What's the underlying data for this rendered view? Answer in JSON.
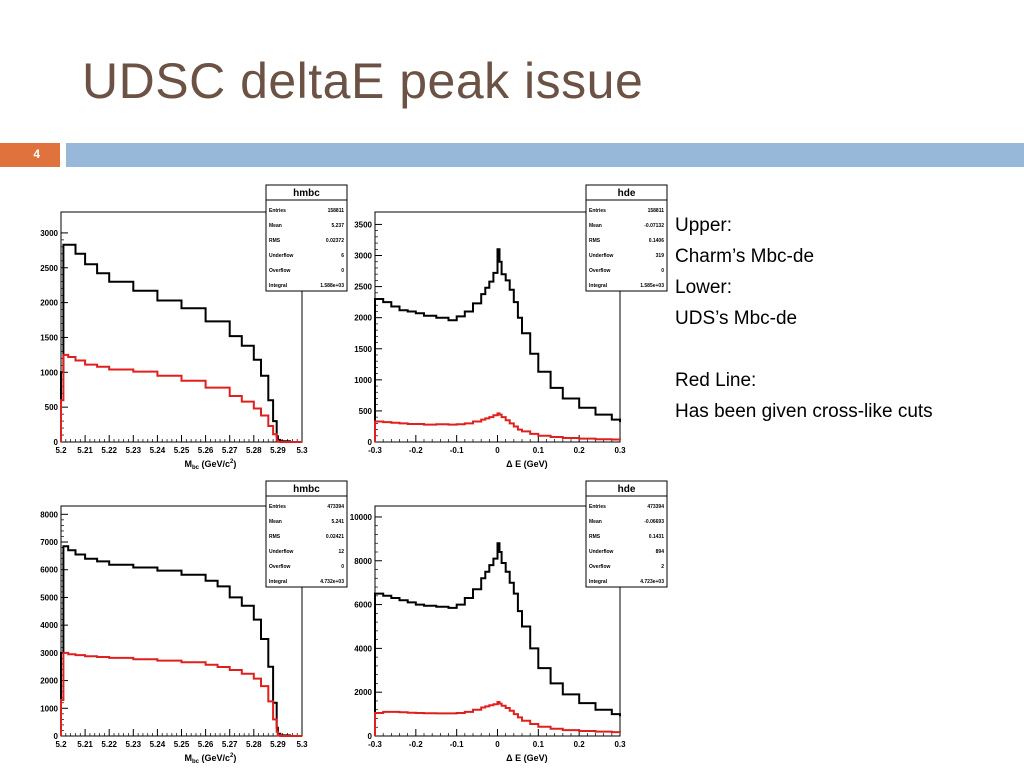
{
  "slide": {
    "title": "UDSC deltaE peak issue",
    "page_number": "4",
    "notes": [
      "Upper:",
      "Charm’s Mbc-de",
      "Lower:",
      "UDS’s Mbc-de",
      "",
      "Red Line:",
      "Has been given cross-like cuts"
    ]
  },
  "colors": {
    "title": "#6b5244",
    "bar": "#97b8d8",
    "number_box": "#e0733d",
    "series_all": "#000000",
    "series_cut": "#e0201e"
  },
  "chart_data": [
    {
      "type": "line",
      "step": true,
      "stats": {
        "name": "hmbc",
        "rows": [
          [
            "Entries",
            "158811"
          ],
          [
            "Mean",
            "5.237"
          ],
          [
            "RMS",
            "0.02372"
          ],
          [
            "Underflow",
            "6"
          ],
          [
            "Overflow",
            "0"
          ],
          [
            "Integral",
            "1.588e+03"
          ]
        ]
      },
      "xlabel": "Mbc (GeV/c2)",
      "xlabel_main": "M",
      "xlabel_sub": "bc",
      "xlabel_rest": " (GeV/c",
      "xlabel_sup": "2",
      "xlabel_end": ")",
      "xlim": [
        5.2,
        5.3
      ],
      "ylim": [
        0,
        3300
      ],
      "xticks": [
        5.2,
        5.21,
        5.22,
        5.23,
        5.24,
        5.25,
        5.26,
        5.27,
        5.28,
        5.29,
        5.3
      ],
      "xtick_labels": [
        "5.2",
        "5.21",
        "5.22",
        "5.23",
        "5.24",
        "5.25",
        "5.26",
        "5.27",
        "5.28",
        "5.29",
        "5.3"
      ],
      "yticks": [
        0,
        500,
        1000,
        1500,
        2000,
        2500,
        3000
      ],
      "ytick_labels": [
        "0",
        "500",
        "1000",
        "1500",
        "2000",
        "2500",
        "3000"
      ],
      "series": [
        {
          "color": "#000000",
          "x": [
            5.2,
            5.201,
            5.203,
            5.206,
            5.21,
            5.215,
            5.22,
            5.23,
            5.24,
            5.25,
            5.26,
            5.27,
            5.275,
            5.28,
            5.283,
            5.286,
            5.288,
            5.2895,
            5.29,
            5.291,
            5.295,
            5.3
          ],
          "y": [
            1000,
            2830,
            2830,
            2700,
            2550,
            2420,
            2300,
            2170,
            2030,
            1920,
            1730,
            1520,
            1380,
            1180,
            950,
            600,
            300,
            80,
            30,
            10,
            0,
            0
          ]
        },
        {
          "color": "#e0201e",
          "x": [
            5.2,
            5.201,
            5.203,
            5.206,
            5.21,
            5.215,
            5.22,
            5.23,
            5.24,
            5.25,
            5.26,
            5.27,
            5.275,
            5.28,
            5.283,
            5.286,
            5.288,
            5.2895,
            5.29,
            5.291,
            5.295,
            5.3
          ],
          "y": [
            600,
            1250,
            1220,
            1170,
            1110,
            1080,
            1040,
            1010,
            950,
            880,
            780,
            660,
            580,
            480,
            380,
            230,
            110,
            20,
            5,
            0,
            0,
            0
          ]
        }
      ]
    },
    {
      "type": "line",
      "step": true,
      "stats": {
        "name": "hde",
        "rows": [
          [
            "Entries",
            "158811"
          ],
          [
            "Mean",
            "-0.07132"
          ],
          [
            "RMS",
            "0.1406"
          ],
          [
            "Underflow",
            "319"
          ],
          [
            "Overflow",
            "0"
          ],
          [
            "Integral",
            "1.585e+03"
          ]
        ]
      },
      "xlabel": "Δ E (GeV)",
      "xlim": [
        -0.3,
        0.3
      ],
      "ylim": [
        0,
        3700
      ],
      "xticks": [
        -0.3,
        -0.2,
        -0.1,
        0,
        0.1,
        0.2,
        0.3
      ],
      "xtick_labels": [
        "-0.3",
        "-0.2",
        "-0.1",
        "0",
        "0.1",
        "0.2",
        "0.3"
      ],
      "yticks": [
        0,
        500,
        1000,
        1500,
        2000,
        2500,
        3000,
        3500
      ],
      "ytick_labels": [
        "0",
        "500",
        "1000",
        "1500",
        "2000",
        "2500",
        "3000",
        "3500"
      ],
      "series": [
        {
          "color": "#000000",
          "x": [
            -0.3,
            -0.28,
            -0.26,
            -0.24,
            -0.22,
            -0.2,
            -0.18,
            -0.15,
            -0.12,
            -0.1,
            -0.08,
            -0.06,
            -0.04,
            -0.03,
            -0.02,
            -0.01,
            0,
            0.005,
            0.01,
            0.02,
            0.03,
            0.04,
            0.05,
            0.06,
            0.08,
            0.1,
            0.13,
            0.16,
            0.2,
            0.24,
            0.28,
            0.3
          ],
          "y": [
            2300,
            2250,
            2180,
            2120,
            2100,
            2070,
            2030,
            2000,
            1960,
            2020,
            2100,
            2230,
            2380,
            2480,
            2580,
            2720,
            3100,
            2900,
            2700,
            2600,
            2450,
            2250,
            2000,
            1750,
            1420,
            1130,
            870,
            700,
            550,
            440,
            360,
            320
          ]
        },
        {
          "color": "#e0201e",
          "x": [
            -0.3,
            -0.28,
            -0.26,
            -0.24,
            -0.22,
            -0.2,
            -0.18,
            -0.15,
            -0.12,
            -0.1,
            -0.08,
            -0.06,
            -0.04,
            -0.03,
            -0.02,
            -0.01,
            0,
            0.005,
            0.01,
            0.02,
            0.03,
            0.04,
            0.05,
            0.06,
            0.08,
            0.1,
            0.13,
            0.16,
            0.2,
            0.24,
            0.28,
            0.3
          ],
          "y": [
            330,
            320,
            310,
            300,
            290,
            290,
            280,
            285,
            280,
            285,
            300,
            330,
            360,
            380,
            400,
            430,
            460,
            440,
            400,
            350,
            300,
            250,
            200,
            170,
            130,
            100,
            80,
            65,
            55,
            45,
            40,
            35
          ]
        }
      ]
    },
    {
      "type": "line",
      "step": true,
      "stats": {
        "name": "hmbc",
        "rows": [
          [
            "Entries",
            "473394"
          ],
          [
            "Mean",
            "5.241"
          ],
          [
            "RMS",
            "0.02421"
          ],
          [
            "Underflow",
            "12"
          ],
          [
            "Overflow",
            "0"
          ],
          [
            "Integral",
            "4.732e+03"
          ]
        ]
      },
      "xlabel": "Mbc (GeV/c2)",
      "xlabel_main": "M",
      "xlabel_sub": "bc",
      "xlabel_rest": " (GeV/c",
      "xlabel_sup": "2",
      "xlabel_end": ")",
      "xlim": [
        5.2,
        5.3
      ],
      "ylim": [
        0,
        8300
      ],
      "xticks": [
        5.2,
        5.21,
        5.22,
        5.23,
        5.24,
        5.25,
        5.26,
        5.27,
        5.28,
        5.29,
        5.3
      ],
      "xtick_labels": [
        "5.2",
        "5.21",
        "5.22",
        "5.23",
        "5.24",
        "5.25",
        "5.26",
        "5.27",
        "5.28",
        "5.29",
        "5.3"
      ],
      "yticks": [
        0,
        1000,
        2000,
        3000,
        4000,
        5000,
        6000,
        7000,
        8000
      ],
      "ytick_labels": [
        "0",
        "1000",
        "2000",
        "3000",
        "4000",
        "5000",
        "6000",
        "7000",
        "8000"
      ],
      "series": [
        {
          "color": "#000000",
          "x": [
            5.2,
            5.201,
            5.203,
            5.206,
            5.21,
            5.215,
            5.22,
            5.23,
            5.24,
            5.25,
            5.26,
            5.265,
            5.27,
            5.275,
            5.28,
            5.283,
            5.286,
            5.288,
            5.2895,
            5.29,
            5.291,
            5.295,
            5.3
          ],
          "y": [
            3000,
            6850,
            6700,
            6550,
            6400,
            6300,
            6180,
            6080,
            5970,
            5820,
            5600,
            5400,
            5000,
            4700,
            4200,
            3500,
            2500,
            1200,
            300,
            80,
            20,
            0,
            0
          ]
        },
        {
          "color": "#e0201e",
          "x": [
            5.2,
            5.201,
            5.203,
            5.206,
            5.21,
            5.215,
            5.22,
            5.23,
            5.24,
            5.25,
            5.26,
            5.265,
            5.27,
            5.275,
            5.28,
            5.283,
            5.286,
            5.288,
            5.2895,
            5.29,
            5.291,
            5.295,
            5.3
          ],
          "y": [
            1300,
            3000,
            2950,
            2920,
            2880,
            2850,
            2820,
            2770,
            2720,
            2660,
            2570,
            2490,
            2380,
            2250,
            2070,
            1800,
            1250,
            600,
            150,
            30,
            0,
            0,
            0
          ]
        }
      ]
    },
    {
      "type": "line",
      "step": true,
      "stats": {
        "name": "hde",
        "rows": [
          [
            "Entries",
            "473394"
          ],
          [
            "Mean",
            "-0.06693"
          ],
          [
            "RMS",
            "0.1431"
          ],
          [
            "Underflow",
            "894"
          ],
          [
            "Overflow",
            "2"
          ],
          [
            "Integral",
            "4.723e+03"
          ]
        ]
      },
      "xlabel": "Δ E (GeV)",
      "xlim": [
        -0.3,
        0.3
      ],
      "ylim": [
        0,
        10500
      ],
      "xticks": [
        -0.3,
        -0.2,
        -0.1,
        0,
        0.1,
        0.2,
        0.3
      ],
      "xtick_labels": [
        "-0.3",
        "-0.2",
        "-0.1",
        "0",
        "0.1",
        "0.2",
        "0.3"
      ],
      "yticks": [
        0,
        2000,
        4000,
        6000,
        8000,
        10000
      ],
      "ytick_labels": [
        "0",
        "2000",
        "4000",
        "6000",
        "8000",
        "10000"
      ],
      "series": [
        {
          "color": "#000000",
          "x": [
            -0.3,
            -0.28,
            -0.26,
            -0.24,
            -0.22,
            -0.2,
            -0.18,
            -0.15,
            -0.12,
            -0.1,
            -0.08,
            -0.06,
            -0.04,
            -0.03,
            -0.02,
            -0.01,
            0,
            0.005,
            0.01,
            0.02,
            0.03,
            0.04,
            0.05,
            0.06,
            0.08,
            0.1,
            0.13,
            0.16,
            0.2,
            0.24,
            0.28,
            0.3
          ],
          "y": [
            6500,
            6400,
            6300,
            6200,
            6100,
            6000,
            5950,
            5900,
            5850,
            6000,
            6300,
            6700,
            7200,
            7500,
            7800,
            8100,
            8800,
            8400,
            7900,
            7500,
            7000,
            6500,
            5700,
            5000,
            4000,
            3100,
            2400,
            1900,
            1500,
            1200,
            1000,
            900
          ]
        },
        {
          "color": "#e0201e",
          "x": [
            -0.3,
            -0.28,
            -0.26,
            -0.24,
            -0.22,
            -0.2,
            -0.18,
            -0.15,
            -0.12,
            -0.1,
            -0.08,
            -0.06,
            -0.04,
            -0.03,
            -0.02,
            -0.01,
            0,
            0.005,
            0.01,
            0.02,
            0.03,
            0.04,
            0.05,
            0.06,
            0.08,
            0.1,
            0.13,
            0.16,
            0.2,
            0.24,
            0.28,
            0.3
          ],
          "y": [
            1050,
            1100,
            1100,
            1080,
            1060,
            1050,
            1040,
            1030,
            1030,
            1050,
            1100,
            1200,
            1300,
            1350,
            1400,
            1450,
            1550,
            1480,
            1380,
            1280,
            1150,
            1000,
            850,
            700,
            550,
            420,
            330,
            270,
            230,
            200,
            180,
            170
          ]
        }
      ]
    }
  ]
}
